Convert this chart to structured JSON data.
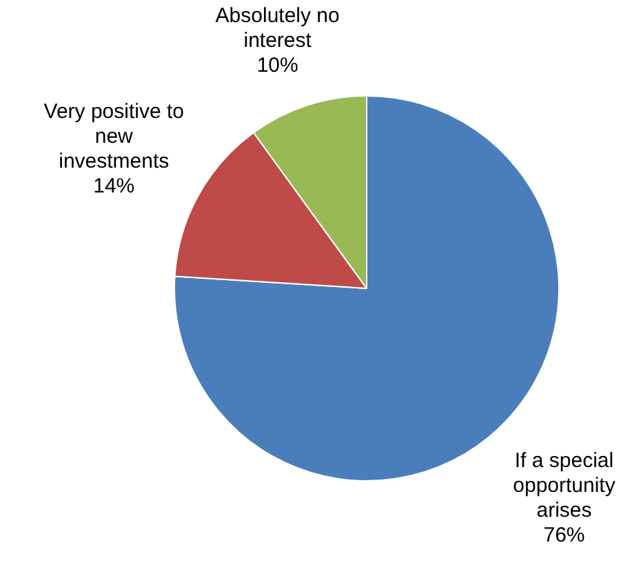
{
  "chart_data": {
    "type": "pie",
    "categories": [
      "If a special opportunity arises",
      "Very positive to new investments",
      "Absolutely no interest"
    ],
    "values": [
      76,
      14,
      10
    ],
    "colors": [
      "#4a7ebb",
      "#be4b48",
      "#98b954"
    ],
    "value_labels": [
      "76%",
      "14%",
      "10%"
    ],
    "legend": false
  }
}
